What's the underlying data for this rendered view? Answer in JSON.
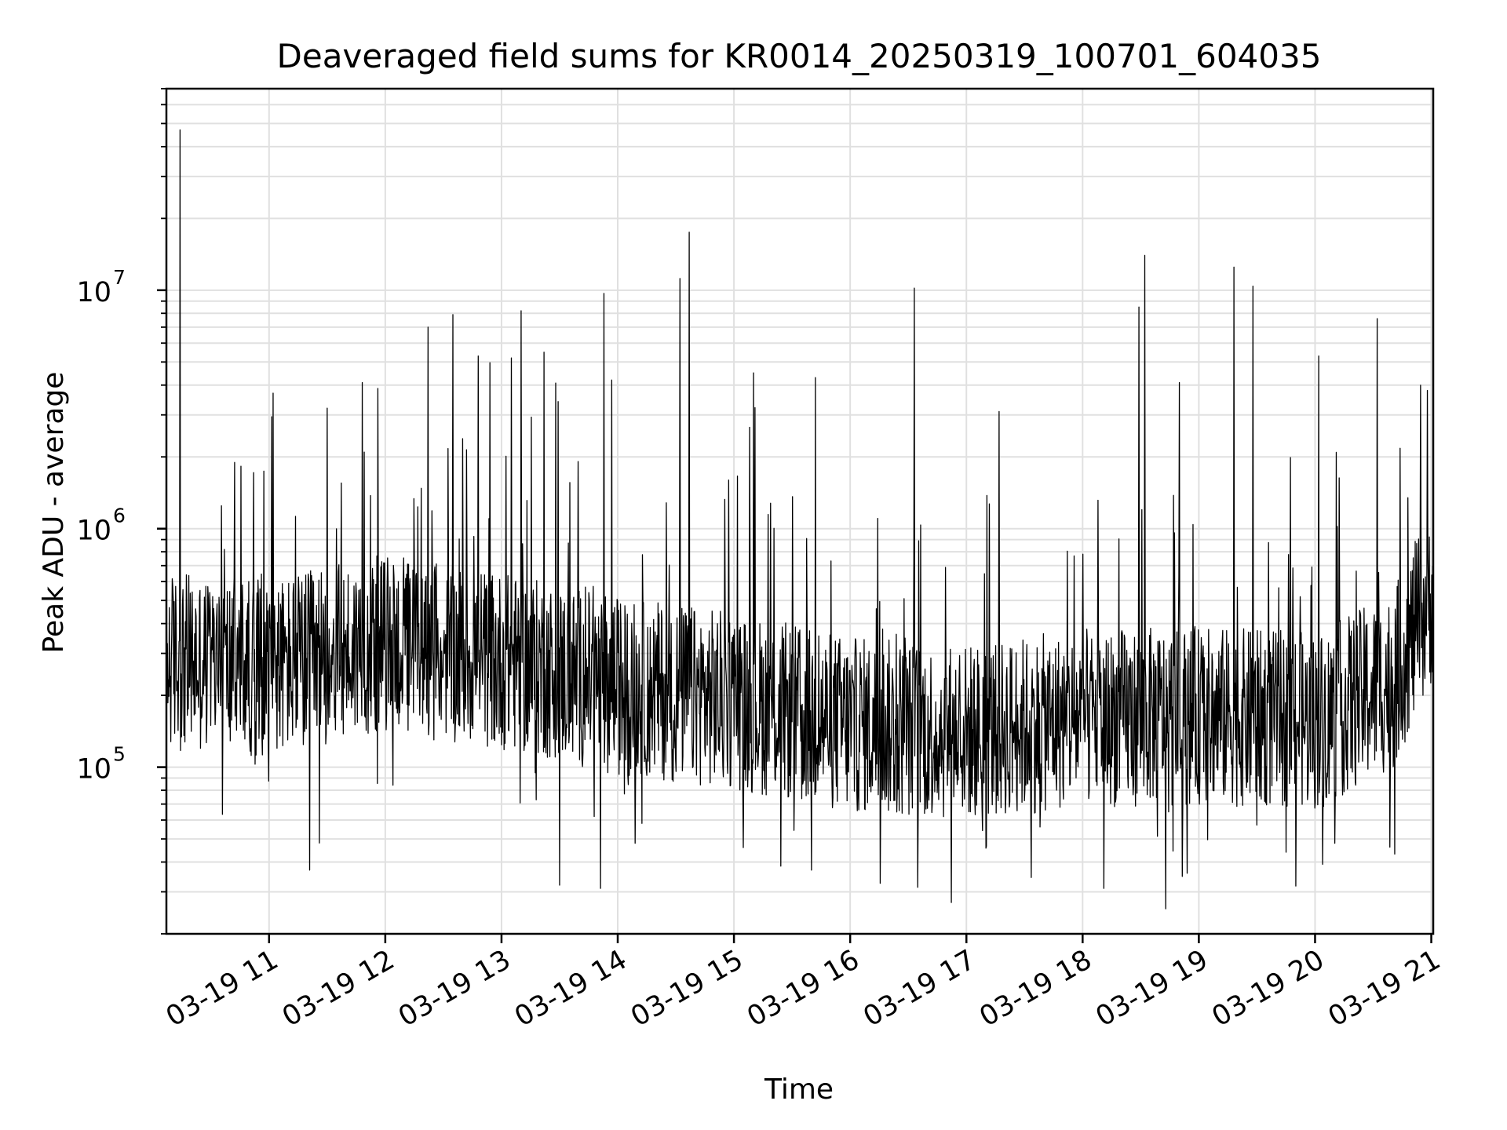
{
  "chart_data": {
    "type": "line",
    "title": "Deaveraged field sums for KR0014_20250319_100701_604035",
    "xlabel": "Time",
    "ylabel": "Peak ADU - average",
    "yscale": "log",
    "ylim": [
      20000,
      70000000
    ],
    "xlim": [
      "03-19 10:07",
      "03-19 21:01"
    ],
    "grid": "on (major and minor)",
    "x_ticks": [
      "03-19 11",
      "03-19 12",
      "03-19 13",
      "03-19 14",
      "03-19 15",
      "03-19 16",
      "03-19 17",
      "03-19 18",
      "03-19 19",
      "03-19 20",
      "03-19 21"
    ],
    "y_ticks": [
      {
        "base": "10",
        "exp": "5",
        "value": 100000
      },
      {
        "base": "10",
        "exp": "6",
        "value": 1000000
      },
      {
        "base": "10",
        "exp": "7",
        "value": 10000000
      }
    ],
    "series": [
      {
        "color": "#000000",
        "approximate_baseline": [
          {
            "x": "03-19 10:07",
            "y": 280000
          },
          {
            "x": "03-19 11:00",
            "y": 260000
          },
          {
            "x": "03-19 12:00",
            "y": 330000
          },
          {
            "x": "03-19 13:00",
            "y": 280000
          },
          {
            "x": "03-19 14:00",
            "y": 220000
          },
          {
            "x": "03-19 15:00",
            "y": 190000
          },
          {
            "x": "03-19 16:00",
            "y": 150000
          },
          {
            "x": "03-19 17:00",
            "y": 140000
          },
          {
            "x": "03-19 18:00",
            "y": 160000
          },
          {
            "x": "03-19 19:00",
            "y": 165000
          },
          {
            "x": "03-19 20:00",
            "y": 155000
          },
          {
            "x": "03-19 20:40",
            "y": 230000
          },
          {
            "x": "03-19 21:01",
            "y": 550000
          }
        ],
        "notable_spikes": [
          {
            "x": "03-19 10:14",
            "y": 47000000
          },
          {
            "x": "03-19 11:02",
            "y": 3700000
          },
          {
            "x": "03-19 11:30",
            "y": 3200000
          },
          {
            "x": "03-19 11:48",
            "y": 4100000
          },
          {
            "x": "03-19 12:22",
            "y": 7000000
          },
          {
            "x": "03-19 12:35",
            "y": 7900000
          },
          {
            "x": "03-19 12:48",
            "y": 5300000
          },
          {
            "x": "03-19 13:05",
            "y": 5200000
          },
          {
            "x": "03-19 13:10",
            "y": 8200000
          },
          {
            "x": "03-19 13:22",
            "y": 5500000
          },
          {
            "x": "03-19 13:53",
            "y": 9700000
          },
          {
            "x": "03-19 13:57",
            "y": 4200000
          },
          {
            "x": "03-19 14:32",
            "y": 11200000
          },
          {
            "x": "03-19 14:37",
            "y": 17500000
          },
          {
            "x": "03-19 15:10",
            "y": 4500000
          },
          {
            "x": "03-19 15:42",
            "y": 4300000
          },
          {
            "x": "03-19 16:33",
            "y": 10200000
          },
          {
            "x": "03-19 17:17",
            "y": 3100000
          },
          {
            "x": "03-19 18:29",
            "y": 8500000
          },
          {
            "x": "03-19 18:32",
            "y": 14000000
          },
          {
            "x": "03-19 18:50",
            "y": 4100000
          },
          {
            "x": "03-19 19:18",
            "y": 12500000
          },
          {
            "x": "03-19 19:28",
            "y": 10400000
          },
          {
            "x": "03-19 20:02",
            "y": 5300000
          },
          {
            "x": "03-19 20:32",
            "y": 7600000
          },
          {
            "x": "03-19 20:58",
            "y": 3800000
          }
        ],
        "notable_dips": [
          {
            "x": "03-19 11:21",
            "y": 37000
          },
          {
            "x": "03-19 13:30",
            "y": 32000
          },
          {
            "x": "03-19 13:51",
            "y": 31000
          },
          {
            "x": "03-19 18:11",
            "y": 31000
          },
          {
            "x": "03-19 15:40",
            "y": 37000
          },
          {
            "x": "03-19 19:45",
            "y": 44000
          }
        ]
      }
    ]
  }
}
